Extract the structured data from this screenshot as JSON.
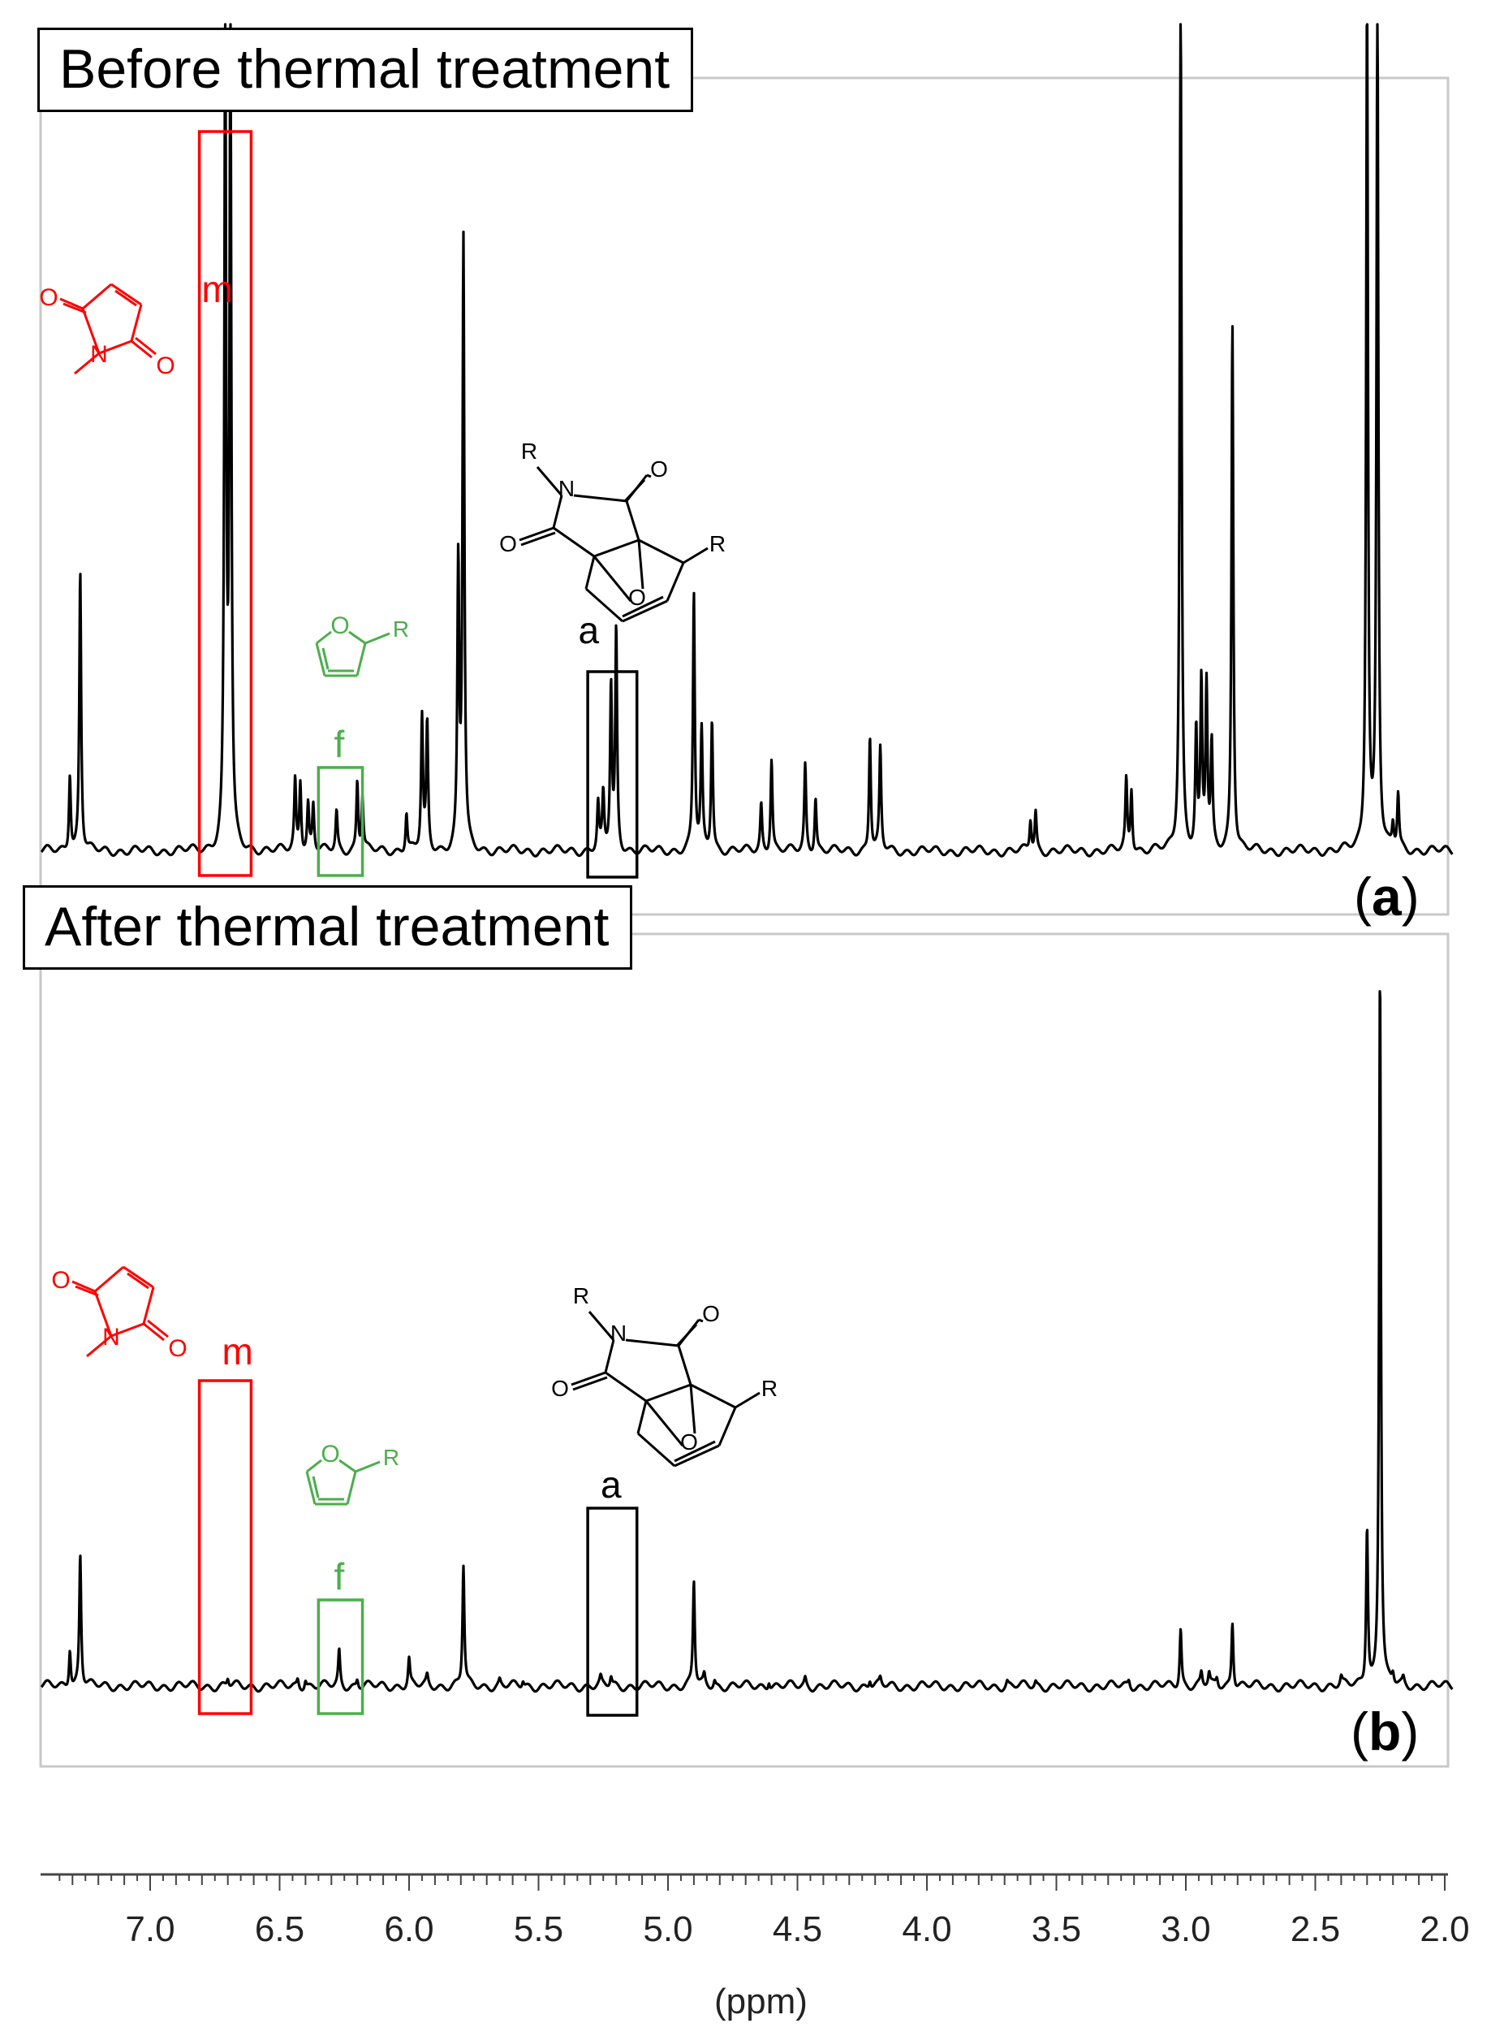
{
  "chart_data": {
    "type": "line",
    "title": "",
    "xlabel": "(ppm)",
    "ylabel": "",
    "xlim": [
      7.42,
      1.97
    ],
    "x_ticks": [
      "7.0",
      "6.5",
      "6.0",
      "5.5",
      "5.0",
      "4.5",
      "4.0",
      "3.5",
      "3.0",
      "2.5",
      "2.0"
    ],
    "panels": [
      {
        "panel_label": "a",
        "title": "Before thermal treatment",
        "peaks": [
          {
            "ppm": 7.31,
            "h": 0.1
          },
          {
            "ppm": 7.27,
            "h": 0.36
          },
          {
            "ppm": 6.71,
            "h": 1.05
          },
          {
            "ppm": 6.69,
            "h": 1.05
          },
          {
            "ppm": 6.44,
            "h": 0.09
          },
          {
            "ppm": 6.42,
            "h": 0.09
          },
          {
            "ppm": 6.39,
            "h": 0.06
          },
          {
            "ppm": 6.37,
            "h": 0.06
          },
          {
            "ppm": 6.28,
            "h": 0.05
          },
          {
            "ppm": 6.2,
            "h": 0.09
          },
          {
            "ppm": 6.18,
            "h": 0.07
          },
          {
            "ppm": 6.01,
            "h": 0.05
          },
          {
            "ppm": 5.95,
            "h": 0.17
          },
          {
            "ppm": 5.93,
            "h": 0.16
          },
          {
            "ppm": 5.81,
            "h": 0.36
          },
          {
            "ppm": 5.79,
            "h": 0.78
          },
          {
            "ppm": 5.27,
            "h": 0.06
          },
          {
            "ppm": 5.25,
            "h": 0.07
          },
          {
            "ppm": 5.22,
            "h": 0.21
          },
          {
            "ppm": 5.2,
            "h": 0.28
          },
          {
            "ppm": 4.9,
            "h": 0.33
          },
          {
            "ppm": 4.87,
            "h": 0.15
          },
          {
            "ppm": 4.83,
            "h": 0.17
          },
          {
            "ppm": 4.64,
            "h": 0.06
          },
          {
            "ppm": 4.6,
            "h": 0.12
          },
          {
            "ppm": 4.47,
            "h": 0.11
          },
          {
            "ppm": 4.43,
            "h": 0.07
          },
          {
            "ppm": 4.22,
            "h": 0.15
          },
          {
            "ppm": 4.18,
            "h": 0.13
          },
          {
            "ppm": 3.6,
            "h": 0.04
          },
          {
            "ppm": 3.58,
            "h": 0.05
          },
          {
            "ppm": 3.23,
            "h": 0.09
          },
          {
            "ppm": 3.21,
            "h": 0.08
          },
          {
            "ppm": 3.02,
            "h": 1.1
          },
          {
            "ppm": 2.96,
            "h": 0.15
          },
          {
            "ppm": 2.94,
            "h": 0.21
          },
          {
            "ppm": 2.92,
            "h": 0.21
          },
          {
            "ppm": 2.9,
            "h": 0.13
          },
          {
            "ppm": 2.82,
            "h": 0.68
          },
          {
            "ppm": 2.3,
            "h": 1.1
          },
          {
            "ppm": 2.26,
            "h": 1.1
          },
          {
            "ppm": 2.2,
            "h": 0.03
          },
          {
            "ppm": 2.18,
            "h": 0.07
          }
        ]
      },
      {
        "panel_label": "b",
        "title": "After thermal treatment",
        "peaks": [
          {
            "ppm": 7.31,
            "h": 0.05
          },
          {
            "ppm": 7.27,
            "h": 0.17
          },
          {
            "ppm": 6.7,
            "h": 0.01
          },
          {
            "ppm": 6.43,
            "h": 0.01
          },
          {
            "ppm": 6.4,
            "h": 0.01
          },
          {
            "ppm": 6.27,
            "h": 0.045
          },
          {
            "ppm": 6.2,
            "h": 0.01
          },
          {
            "ppm": 6.0,
            "h": 0.035
          },
          {
            "ppm": 5.93,
            "h": 0.012
          },
          {
            "ppm": 5.79,
            "h": 0.155
          },
          {
            "ppm": 5.65,
            "h": 0.007
          },
          {
            "ppm": 5.56,
            "h": 0.008
          },
          {
            "ppm": 5.26,
            "h": 0.009
          },
          {
            "ppm": 5.22,
            "h": 0.012
          },
          {
            "ppm": 4.9,
            "h": 0.135
          },
          {
            "ppm": 4.86,
            "h": 0.012
          },
          {
            "ppm": 4.82,
            "h": 0.008
          },
          {
            "ppm": 4.61,
            "h": 0.01
          },
          {
            "ppm": 4.47,
            "h": 0.01
          },
          {
            "ppm": 4.22,
            "h": 0.01
          },
          {
            "ppm": 4.18,
            "h": 0.008
          },
          {
            "ppm": 3.69,
            "h": 0.006
          },
          {
            "ppm": 3.58,
            "h": 0.006
          },
          {
            "ppm": 3.22,
            "h": 0.008
          },
          {
            "ppm": 3.02,
            "h": 0.075
          },
          {
            "ppm": 2.94,
            "h": 0.016
          },
          {
            "ppm": 2.91,
            "h": 0.016
          },
          {
            "ppm": 2.88,
            "h": 0.01
          },
          {
            "ppm": 2.82,
            "h": 0.085
          },
          {
            "ppm": 2.4,
            "h": 0.01
          },
          {
            "ppm": 2.3,
            "h": 0.205
          },
          {
            "ppm": 2.25,
            "h": 0.92
          },
          {
            "ppm": 2.2,
            "h": 0.012
          },
          {
            "ppm": 2.16,
            "h": 0.008
          }
        ]
      }
    ],
    "annotations": [
      {
        "label": "m",
        "color": "#ff0000",
        "ppm_range": [
          6.81,
          6.61
        ]
      },
      {
        "label": "f",
        "color": "#4cae4c",
        "ppm_range": [
          6.35,
          6.18
        ]
      },
      {
        "label": "a",
        "color": "#000000",
        "ppm_range": [
          5.31,
          5.12
        ]
      }
    ],
    "structure_labels": {
      "maleimide": {
        "o_top": "O",
        "n": "N",
        "o_bottom": "O",
        "color": "#ff0000"
      },
      "furan": {
        "o": "O",
        "r": "R",
        "color": "#4cae4c"
      },
      "adduct": {
        "r_n": "R",
        "n": "N",
        "o_top": "O",
        "o_left": "O",
        "o_bridge": "O",
        "r_c": "R",
        "color": "#000000"
      }
    }
  }
}
